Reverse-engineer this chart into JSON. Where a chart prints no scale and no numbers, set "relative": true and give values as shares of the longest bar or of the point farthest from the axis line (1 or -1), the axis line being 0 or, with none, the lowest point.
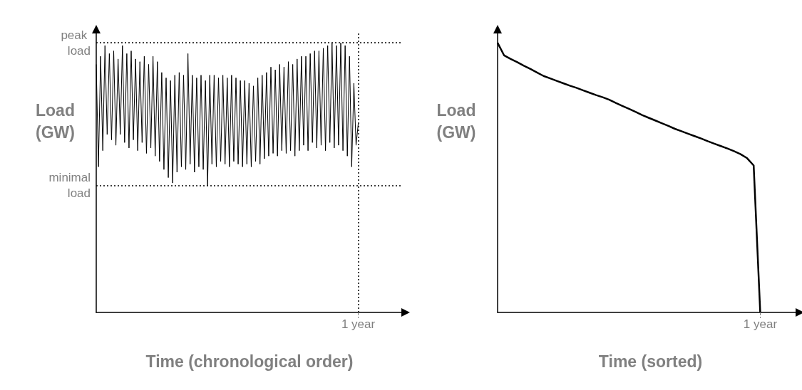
{
  "chart_data": [
    {
      "type": "line",
      "relative": true,
      "xlabel": "Time (chronological order)",
      "ylabel": "Load (GW)",
      "color": "#000000",
      "marker": "none",
      "grid": false,
      "annotations": [
        "1 year"
      ],
      "categories": [
        null,
        null,
        null,
        null,
        null,
        null,
        null,
        null,
        null,
        null,
        null,
        null,
        null,
        null,
        null,
        null,
        null,
        null,
        null,
        null,
        null,
        null,
        null,
        null,
        null,
        null,
        null,
        null,
        null,
        null,
        null,
        null,
        null,
        null,
        null,
        null,
        null,
        null,
        null,
        null,
        null,
        null,
        null,
        null,
        null,
        null,
        null,
        null,
        null,
        null,
        null,
        null,
        null,
        null,
        null,
        null,
        null,
        null,
        null,
        null,
        null,
        null,
        null,
        null,
        null,
        null,
        null,
        null,
        null,
        null,
        null,
        null,
        null,
        null,
        null,
        null,
        null,
        null,
        null,
        null,
        null,
        null,
        null,
        null,
        null,
        null,
        null,
        null,
        null,
        null,
        null,
        null,
        null,
        null,
        null,
        null,
        null,
        null,
        null,
        null,
        null,
        null,
        null,
        null,
        null,
        null,
        null,
        null,
        null,
        null,
        null,
        null,
        null,
        null,
        null,
        null,
        null,
        null,
        null,
        null,
        null
      ],
      "values": [
        0.92,
        0.54,
        0.95,
        0.6,
        0.99,
        0.66,
        0.96,
        0.64,
        0.97,
        0.62,
        0.94,
        0.66,
        0.99,
        0.63,
        0.96,
        0.61,
        0.97,
        0.64,
        0.94,
        0.6,
        0.93,
        0.63,
        0.95,
        0.59,
        0.92,
        0.61,
        0.95,
        0.58,
        0.93,
        0.56,
        0.89,
        0.53,
        0.87,
        0.5,
        0.86,
        0.48,
        0.88,
        0.52,
        0.89,
        0.54,
        0.88,
        0.53,
        0.96,
        0.55,
        0.88,
        0.52,
        0.87,
        0.54,
        0.88,
        0.53,
        0.86,
        0.47,
        0.88,
        0.55,
        0.88,
        0.54,
        0.87,
        0.56,
        0.88,
        0.55,
        0.87,
        0.54,
        0.88,
        0.56,
        0.87,
        0.55,
        0.86,
        0.54,
        0.86,
        0.55,
        0.85,
        0.54,
        0.84,
        0.56,
        0.87,
        0.55,
        0.88,
        0.57,
        0.89,
        0.58,
        0.91,
        0.59,
        0.9,
        0.58,
        0.92,
        0.6,
        0.91,
        0.59,
        0.93,
        0.6,
        0.92,
        0.58,
        0.94,
        0.6,
        0.95,
        0.62,
        0.95,
        0.6,
        0.96,
        0.63,
        0.97,
        0.61,
        0.97,
        0.62,
        0.98,
        0.6,
        0.99,
        0.63,
        1,
        0.61,
        0.99,
        0.62,
        1,
        0.6,
        0.99,
        0.58,
        0.95,
        0.54,
        0.85,
        0.62,
        0.7
      ],
      "ref_lines": [
        {
          "axis": "y",
          "value": 1,
          "label": "peak load"
        },
        {
          "axis": "y",
          "value": 0.47,
          "label": "minimal load"
        }
      ]
    },
    {
      "type": "line",
      "relative": true,
      "xlabel": "Time (sorted)",
      "ylabel": "Load (GW)",
      "color": "#000000",
      "marker": "none",
      "grid": false,
      "annotations": [
        "1 year"
      ],
      "categories": [
        null,
        null,
        null,
        null,
        null,
        null,
        null,
        null,
        null,
        null,
        null,
        null,
        null,
        null,
        null,
        null,
        null,
        null,
        null,
        null,
        null,
        null,
        null,
        null,
        null,
        null,
        null,
        null,
        null,
        null,
        null,
        null,
        null,
        null,
        null,
        null,
        null,
        null,
        null,
        null,
        null
      ],
      "values": [
        1,
        0.953,
        0.94,
        0.928,
        0.915,
        0.903,
        0.89,
        0.877,
        0.868,
        0.859,
        0.85,
        0.841,
        0.833,
        0.824,
        0.815,
        0.806,
        0.798,
        0.789,
        0.777,
        0.766,
        0.755,
        0.744,
        0.732,
        0.722,
        0.712,
        0.702,
        0.692,
        0.681,
        0.672,
        0.663,
        0.654,
        0.645,
        0.635,
        0.626,
        0.617,
        0.608,
        0.598,
        0.587,
        0.572,
        0.545,
        0
      ]
    }
  ]
}
